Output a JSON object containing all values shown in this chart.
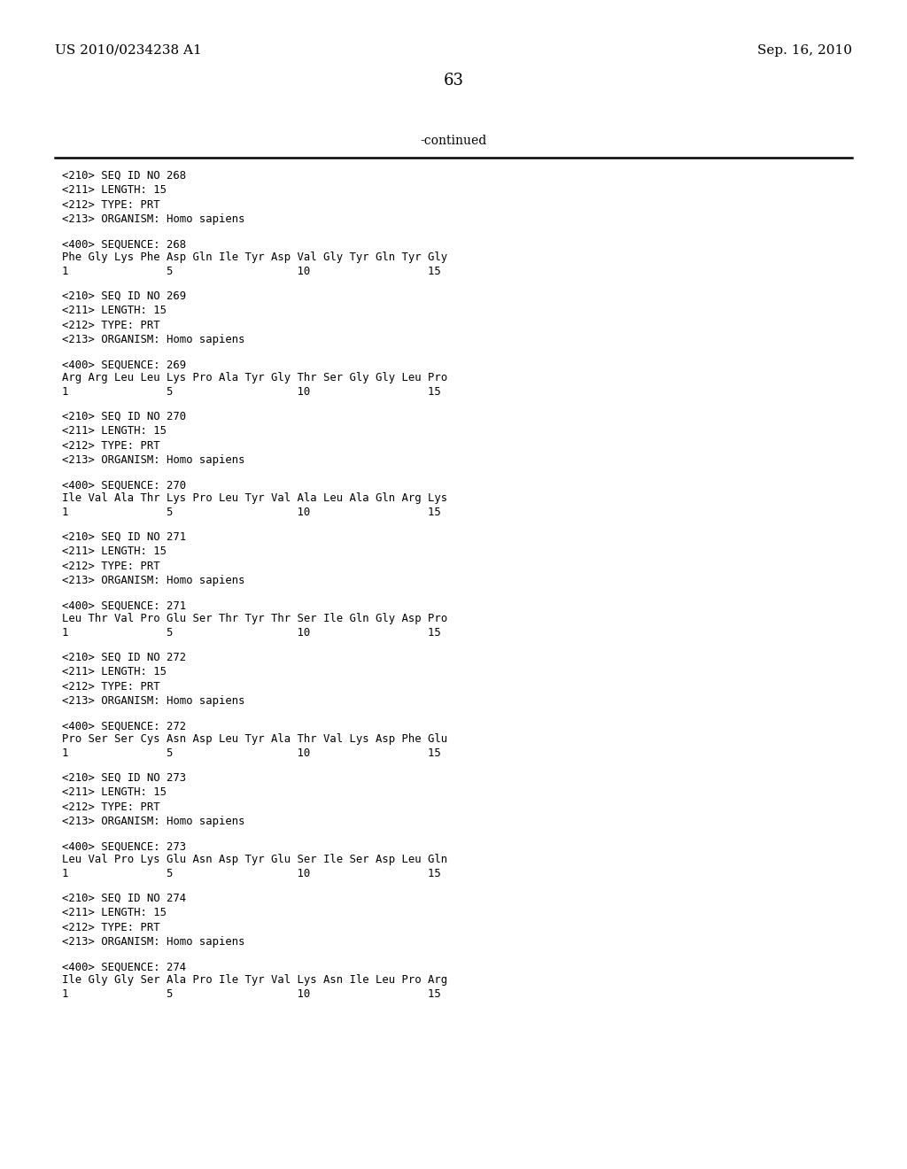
{
  "patent_left": "US 2010/0234238 A1",
  "patent_right": "Sep. 16, 2010",
  "page_number": "63",
  "continued_text": "-continued",
  "background_color": "#ffffff",
  "text_color": "#000000",
  "sections": [
    {
      "id": 268,
      "meta": [
        "<210> SEQ ID NO 268",
        "<211> LENGTH: 15",
        "<212> TYPE: PRT",
        "<213> ORGANISM: Homo sapiens"
      ],
      "seq_label": "<400> SEQUENCE: 268",
      "sequence": "Phe Gly Lys Phe Asp Gln Ile Tyr Asp Val Gly Tyr Gln Tyr Gly",
      "num_line": "1               5                   10                  15"
    },
    {
      "id": 269,
      "meta": [
        "<210> SEQ ID NO 269",
        "<211> LENGTH: 15",
        "<212> TYPE: PRT",
        "<213> ORGANISM: Homo sapiens"
      ],
      "seq_label": "<400> SEQUENCE: 269",
      "sequence": "Arg Arg Leu Leu Lys Pro Ala Tyr Gly Thr Ser Gly Gly Leu Pro",
      "num_line": "1               5                   10                  15"
    },
    {
      "id": 270,
      "meta": [
        "<210> SEQ ID NO 270",
        "<211> LENGTH: 15",
        "<212> TYPE: PRT",
        "<213> ORGANISM: Homo sapiens"
      ],
      "seq_label": "<400> SEQUENCE: 270",
      "sequence": "Ile Val Ala Thr Lys Pro Leu Tyr Val Ala Leu Ala Gln Arg Lys",
      "num_line": "1               5                   10                  15"
    },
    {
      "id": 271,
      "meta": [
        "<210> SEQ ID NO 271",
        "<211> LENGTH: 15",
        "<212> TYPE: PRT",
        "<213> ORGANISM: Homo sapiens"
      ],
      "seq_label": "<400> SEQUENCE: 271",
      "sequence": "Leu Thr Val Pro Glu Ser Thr Tyr Thr Ser Ile Gln Gly Asp Pro",
      "num_line": "1               5                   10                  15"
    },
    {
      "id": 272,
      "meta": [
        "<210> SEQ ID NO 272",
        "<211> LENGTH: 15",
        "<212> TYPE: PRT",
        "<213> ORGANISM: Homo sapiens"
      ],
      "seq_label": "<400> SEQUENCE: 272",
      "sequence": "Pro Ser Ser Cys Asn Asp Leu Tyr Ala Thr Val Lys Asp Phe Glu",
      "num_line": "1               5                   10                  15"
    },
    {
      "id": 273,
      "meta": [
        "<210> SEQ ID NO 273",
        "<211> LENGTH: 15",
        "<212> TYPE: PRT",
        "<213> ORGANISM: Homo sapiens"
      ],
      "seq_label": "<400> SEQUENCE: 273",
      "sequence": "Leu Val Pro Lys Glu Asn Asp Tyr Glu Ser Ile Ser Asp Leu Gln",
      "num_line": "1               5                   10                  15"
    },
    {
      "id": 274,
      "meta": [
        "<210> SEQ ID NO 274",
        "<211> LENGTH: 15",
        "<212> TYPE: PRT",
        "<213> ORGANISM: Homo sapiens"
      ],
      "seq_label": "<400> SEQUENCE: 274",
      "sequence": "Ile Gly Gly Ser Ala Pro Ile Tyr Val Lys Asn Ile Leu Pro Arg",
      "num_line": "1               5                   10                  15"
    }
  ]
}
